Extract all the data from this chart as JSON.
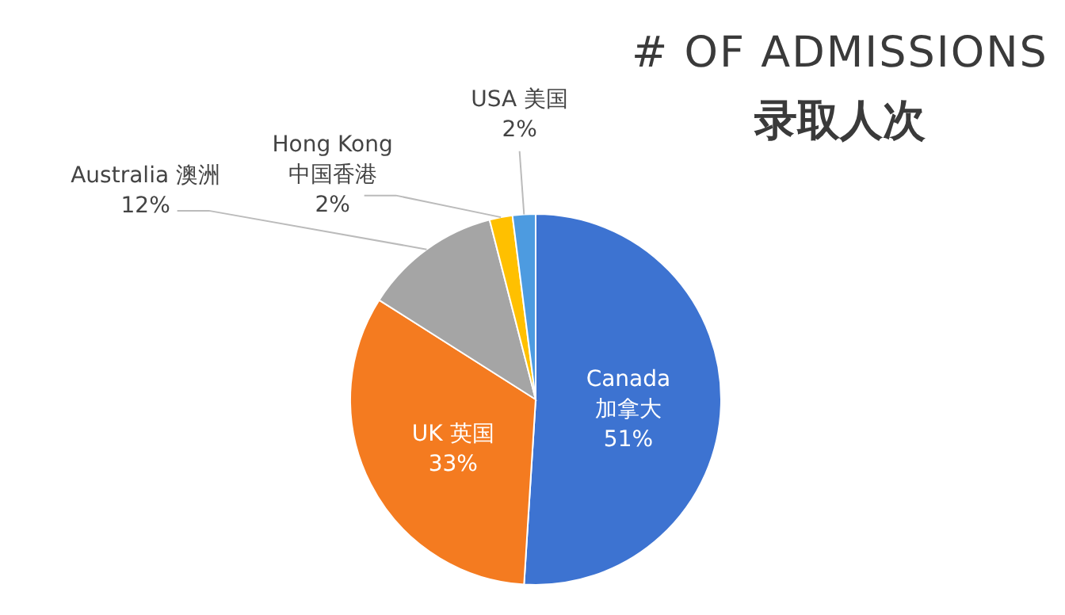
{
  "chart_data": {
    "type": "pie",
    "title": "# OF ADMISSIONS",
    "subtitle": "录取人次",
    "categories": [
      "Canada 加拿大",
      "UK 英国",
      "Australia 澳洲",
      "Hong Kong 中国香港",
      "USA 美国"
    ],
    "values": [
      51,
      33,
      12,
      2,
      2
    ],
    "value_labels": [
      "51%",
      "33%",
      "12%",
      "2%",
      "2%"
    ],
    "colors": [
      "#3d73d1",
      "#f47b20",
      "#a5a5a5",
      "#ffc000",
      "#4d9be0"
    ]
  }
}
